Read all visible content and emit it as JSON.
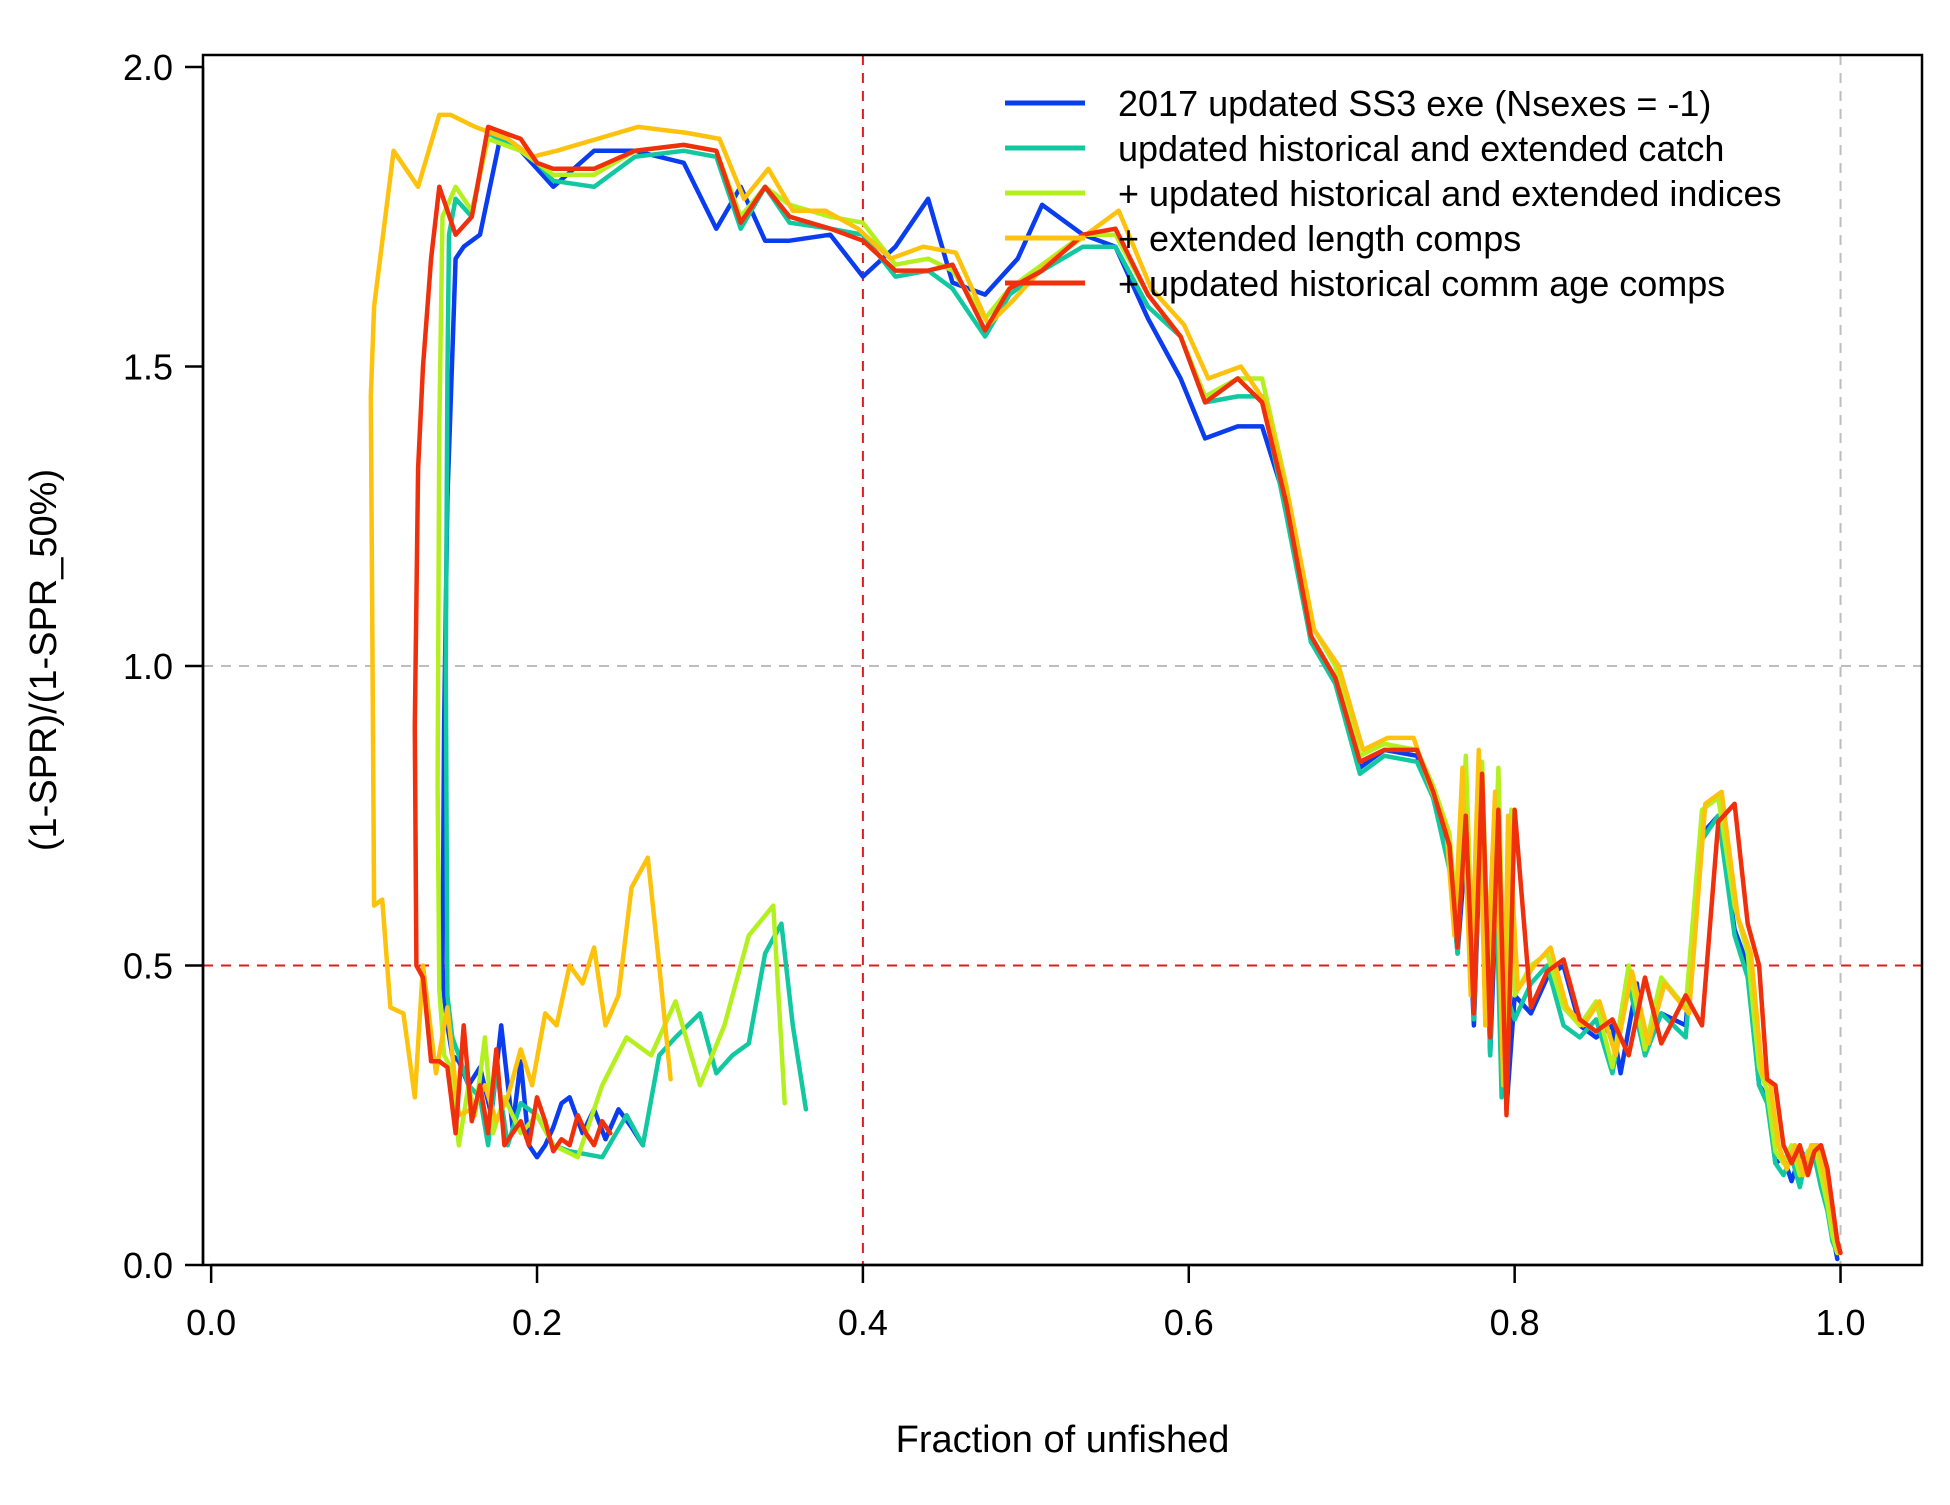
{
  "chart_data": {
    "type": "line",
    "title": "",
    "xlabel": "Fraction of unfished",
    "ylabel": "(1-SPR)/(1-SPR_50%)",
    "xlim": [
      -0.005,
      1.05
    ],
    "ylim": [
      0,
      2.02
    ],
    "xticks": [
      0.0,
      0.2,
      0.4,
      0.6,
      0.8,
      1.0
    ],
    "xtick_labels": [
      "0.0",
      "0.2",
      "0.4",
      "0.6",
      "0.8",
      "1.0"
    ],
    "yticks": [
      0.0,
      0.5,
      1.0,
      1.5,
      2.0
    ],
    "ytick_labels": [
      "0.0",
      "0.5",
      "1.0",
      "1.5",
      "2.0"
    ],
    "grid": false,
    "legend_position": "top-right",
    "reference_lines": [
      {
        "axis": "x",
        "value": 0.4,
        "color": "#e31a1c",
        "style": "dashed"
      },
      {
        "axis": "y",
        "value": 0.5,
        "color": "#e31a1c",
        "style": "dashed"
      },
      {
        "axis": "x",
        "value": 1.0,
        "color": "#bdbdbd",
        "style": "dashed"
      },
      {
        "axis": "y",
        "value": 1.0,
        "color": "#bdbdbd",
        "style": "dashed"
      }
    ],
    "series": [
      {
        "name": "2017 updated SS3 exe (Nsexes = -1)",
        "color": "#0a3cf0",
        "x": [
          0.998,
          0.996,
          0.993,
          0.99,
          0.985,
          0.98,
          0.976,
          0.97,
          0.965,
          0.96,
          0.955,
          0.95,
          0.943,
          0.935,
          0.925,
          0.915,
          0.905,
          0.89,
          0.88,
          0.875,
          0.865,
          0.86,
          0.85,
          0.84,
          0.83,
          0.82,
          0.81,
          0.8,
          0.795,
          0.79,
          0.785,
          0.78,
          0.775,
          0.77,
          0.765,
          0.76,
          0.75,
          0.74,
          0.72,
          0.705,
          0.69,
          0.675,
          0.66,
          0.645,
          0.63,
          0.61,
          0.595,
          0.575,
          0.555,
          0.535,
          0.51,
          0.495,
          0.475,
          0.455,
          0.44,
          0.42,
          0.4,
          0.38,
          0.355,
          0.34,
          0.325,
          0.31,
          0.29,
          0.26,
          0.235,
          0.21,
          0.2,
          0.19,
          0.178,
          0.165,
          0.155,
          0.15,
          0.145,
          0.143,
          0.142,
          0.143,
          0.145,
          0.148,
          0.152,
          0.158,
          0.165,
          0.172,
          0.178,
          0.185,
          0.19,
          0.195,
          0.2,
          0.205,
          0.21,
          0.215,
          0.22,
          0.228,
          0.235,
          0.242,
          0.25,
          0.258,
          0.265
        ],
        "y": [
          0.01,
          0.04,
          0.09,
          0.14,
          0.19,
          0.17,
          0.19,
          0.14,
          0.18,
          0.17,
          0.28,
          0.3,
          0.5,
          0.56,
          0.75,
          0.72,
          0.4,
          0.42,
          0.35,
          0.47,
          0.32,
          0.4,
          0.38,
          0.4,
          0.5,
          0.48,
          0.42,
          0.45,
          0.26,
          0.72,
          0.35,
          0.8,
          0.4,
          0.7,
          0.52,
          0.67,
          0.78,
          0.85,
          0.86,
          0.83,
          0.98,
          1.04,
          1.27,
          1.4,
          1.4,
          1.38,
          1.48,
          1.58,
          1.7,
          1.72,
          1.77,
          1.68,
          1.62,
          1.64,
          1.78,
          1.7,
          1.65,
          1.72,
          1.71,
          1.71,
          1.8,
          1.73,
          1.84,
          1.86,
          1.86,
          1.8,
          1.83,
          1.86,
          1.89,
          1.72,
          1.7,
          1.68,
          1.28,
          0.9,
          0.5,
          0.45,
          0.4,
          0.35,
          0.34,
          0.3,
          0.33,
          0.25,
          0.4,
          0.23,
          0.34,
          0.2,
          0.18,
          0.2,
          0.23,
          0.27,
          0.28,
          0.22,
          0.26,
          0.21,
          0.26,
          0.23,
          0.2
        ]
      },
      {
        "name": "updated historical and extended catch",
        "color": "#12c8a0",
        "x": [
          0.998,
          0.995,
          0.992,
          0.988,
          0.984,
          0.98,
          0.975,
          0.97,
          0.965,
          0.96,
          0.955,
          0.95,
          0.943,
          0.935,
          0.925,
          0.915,
          0.905,
          0.89,
          0.88,
          0.87,
          0.86,
          0.85,
          0.84,
          0.83,
          0.82,
          0.81,
          0.8,
          0.795,
          0.792,
          0.788,
          0.785,
          0.78,
          0.775,
          0.77,
          0.765,
          0.76,
          0.75,
          0.74,
          0.72,
          0.705,
          0.69,
          0.675,
          0.66,
          0.645,
          0.63,
          0.61,
          0.595,
          0.575,
          0.555,
          0.535,
          0.51,
          0.49,
          0.475,
          0.455,
          0.44,
          0.42,
          0.4,
          0.38,
          0.355,
          0.34,
          0.325,
          0.31,
          0.29,
          0.26,
          0.235,
          0.21,
          0.2,
          0.19,
          0.17,
          0.16,
          0.15,
          0.146,
          0.145,
          0.144,
          0.145,
          0.148,
          0.152,
          0.158,
          0.165,
          0.17,
          0.175,
          0.182,
          0.19,
          0.2,
          0.21,
          0.22,
          0.24,
          0.255,
          0.265,
          0.275,
          0.285,
          0.3,
          0.31,
          0.32,
          0.33,
          0.34,
          0.35,
          0.357,
          0.365
        ],
        "y": [
          0.02,
          0.04,
          0.09,
          0.13,
          0.18,
          0.19,
          0.13,
          0.18,
          0.15,
          0.17,
          0.27,
          0.3,
          0.48,
          0.55,
          0.75,
          0.71,
          0.38,
          0.42,
          0.35,
          0.47,
          0.32,
          0.41,
          0.38,
          0.4,
          0.5,
          0.47,
          0.41,
          0.45,
          0.28,
          0.7,
          0.35,
          0.82,
          0.41,
          0.8,
          0.52,
          0.66,
          0.78,
          0.84,
          0.85,
          0.82,
          0.97,
          1.04,
          1.25,
          1.45,
          1.45,
          1.44,
          1.55,
          1.6,
          1.7,
          1.7,
          1.66,
          1.62,
          1.55,
          1.63,
          1.66,
          1.65,
          1.72,
          1.73,
          1.74,
          1.8,
          1.73,
          1.85,
          1.86,
          1.85,
          1.8,
          1.81,
          1.84,
          1.86,
          1.89,
          1.75,
          1.78,
          1.72,
          1.48,
          1.0,
          0.45,
          0.38,
          0.35,
          0.3,
          0.28,
          0.2,
          0.33,
          0.2,
          0.27,
          0.25,
          0.2,
          0.19,
          0.18,
          0.25,
          0.2,
          0.35,
          0.38,
          0.42,
          0.32,
          0.35,
          0.37,
          0.52,
          0.57,
          0.4,
          0.26
        ]
      },
      {
        "name": "+ updated historical and extended indices",
        "color": "#b4f020",
        "x": [
          0.998,
          0.995,
          0.992,
          0.988,
          0.984,
          0.98,
          0.975,
          0.97,
          0.965,
          0.96,
          0.955,
          0.95,
          0.943,
          0.935,
          0.925,
          0.915,
          0.905,
          0.89,
          0.88,
          0.87,
          0.86,
          0.85,
          0.84,
          0.83,
          0.82,
          0.81,
          0.8,
          0.798,
          0.795,
          0.79,
          0.785,
          0.78,
          0.775,
          0.77,
          0.765,
          0.76,
          0.75,
          0.74,
          0.72,
          0.705,
          0.69,
          0.675,
          0.66,
          0.645,
          0.63,
          0.61,
          0.595,
          0.575,
          0.555,
          0.535,
          0.51,
          0.49,
          0.475,
          0.455,
          0.44,
          0.42,
          0.4,
          0.38,
          0.355,
          0.34,
          0.325,
          0.31,
          0.29,
          0.26,
          0.235,
          0.21,
          0.2,
          0.19,
          0.17,
          0.16,
          0.15,
          0.142,
          0.14,
          0.139,
          0.14,
          0.143,
          0.147,
          0.152,
          0.158,
          0.162,
          0.168,
          0.173,
          0.18,
          0.19,
          0.2,
          0.21,
          0.225,
          0.24,
          0.255,
          0.27,
          0.285,
          0.3,
          0.315,
          0.33,
          0.345,
          0.352
        ],
        "y": [
          0.02,
          0.05,
          0.1,
          0.15,
          0.2,
          0.19,
          0.15,
          0.2,
          0.17,
          0.19,
          0.29,
          0.33,
          0.52,
          0.6,
          0.78,
          0.76,
          0.43,
          0.48,
          0.36,
          0.5,
          0.33,
          0.44,
          0.4,
          0.43,
          0.52,
          0.5,
          0.45,
          0.76,
          0.29,
          0.83,
          0.4,
          0.84,
          0.45,
          0.85,
          0.56,
          0.72,
          0.8,
          0.86,
          0.87,
          0.85,
          1.0,
          1.07,
          1.3,
          1.48,
          1.48,
          1.45,
          1.55,
          1.62,
          1.72,
          1.72,
          1.67,
          1.63,
          1.58,
          1.66,
          1.68,
          1.67,
          1.74,
          1.75,
          1.77,
          1.8,
          1.75,
          1.86,
          1.87,
          1.86,
          1.82,
          1.82,
          1.84,
          1.86,
          1.88,
          1.76,
          1.8,
          1.75,
          1.4,
          0.8,
          0.46,
          0.35,
          0.33,
          0.2,
          0.3,
          0.25,
          0.38,
          0.22,
          0.28,
          0.22,
          0.25,
          0.2,
          0.18,
          0.3,
          0.38,
          0.35,
          0.44,
          0.3,
          0.4,
          0.55,
          0.6,
          0.27
        ]
      },
      {
        "name": "+ extended length comps",
        "color": "#fcc20c",
        "x": [
          0.999,
          0.997,
          0.994,
          0.99,
          0.986,
          0.982,
          0.977,
          0.972,
          0.967,
          0.962,
          0.957,
          0.952,
          0.945,
          0.937,
          0.927,
          0.917,
          0.907,
          0.892,
          0.882,
          0.872,
          0.862,
          0.852,
          0.842,
          0.832,
          0.822,
          0.812,
          0.802,
          0.796,
          0.793,
          0.788,
          0.782,
          0.778,
          0.773,
          0.768,
          0.763,
          0.758,
          0.748,
          0.738,
          0.722,
          0.707,
          0.692,
          0.677,
          0.662,
          0.647,
          0.632,
          0.612,
          0.597,
          0.577,
          0.557,
          0.537,
          0.512,
          0.492,
          0.477,
          0.457,
          0.437,
          0.417,
          0.397,
          0.377,
          0.357,
          0.342,
          0.327,
          0.312,
          0.292,
          0.262,
          0.237,
          0.212,
          0.197,
          0.182,
          0.162,
          0.147,
          0.14,
          0.127,
          0.112,
          0.1,
          0.098,
          0.1,
          0.105,
          0.11,
          0.118,
          0.125,
          0.13,
          0.138,
          0.145,
          0.152,
          0.16,
          0.168,
          0.175,
          0.182,
          0.19,
          0.197,
          0.205,
          0.212,
          0.22,
          0.228,
          0.235,
          0.242,
          0.25,
          0.258,
          0.268,
          0.275,
          0.282
        ],
        "y": [
          0.02,
          0.05,
          0.1,
          0.15,
          0.2,
          0.2,
          0.15,
          0.2,
          0.16,
          0.2,
          0.3,
          0.32,
          0.52,
          0.58,
          0.79,
          0.77,
          0.42,
          0.47,
          0.37,
          0.49,
          0.35,
          0.44,
          0.4,
          0.43,
          0.53,
          0.5,
          0.46,
          0.75,
          0.3,
          0.79,
          0.4,
          0.86,
          0.45,
          0.83,
          0.55,
          0.73,
          0.8,
          0.88,
          0.88,
          0.86,
          1.0,
          1.06,
          1.27,
          1.44,
          1.5,
          1.48,
          1.57,
          1.63,
          1.76,
          1.72,
          1.67,
          1.61,
          1.57,
          1.69,
          1.7,
          1.68,
          1.73,
          1.76,
          1.76,
          1.83,
          1.78,
          1.88,
          1.89,
          1.9,
          1.88,
          1.86,
          1.85,
          1.88,
          1.9,
          1.92,
          1.92,
          1.8,
          1.86,
          1.6,
          1.45,
          0.6,
          0.61,
          0.43,
          0.42,
          0.28,
          0.5,
          0.32,
          0.43,
          0.25,
          0.26,
          0.3,
          0.24,
          0.28,
          0.36,
          0.3,
          0.42,
          0.4,
          0.5,
          0.47,
          0.53,
          0.4,
          0.45,
          0.63,
          0.68,
          0.5,
          0.31
        ]
      },
      {
        "name": "+ updated historical comm age comps",
        "color": "#f0300c",
        "x": [
          1.0,
          0.998,
          0.995,
          0.992,
          0.988,
          0.984,
          0.98,
          0.975,
          0.97,
          0.965,
          0.96,
          0.955,
          0.95,
          0.943,
          0.935,
          0.925,
          0.915,
          0.905,
          0.89,
          0.88,
          0.87,
          0.86,
          0.85,
          0.84,
          0.83,
          0.82,
          0.81,
          0.8,
          0.795,
          0.79,
          0.785,
          0.78,
          0.775,
          0.77,
          0.765,
          0.76,
          0.75,
          0.74,
          0.72,
          0.705,
          0.69,
          0.675,
          0.66,
          0.645,
          0.63,
          0.61,
          0.595,
          0.575,
          0.555,
          0.535,
          0.51,
          0.49,
          0.475,
          0.455,
          0.44,
          0.42,
          0.4,
          0.38,
          0.355,
          0.34,
          0.325,
          0.31,
          0.29,
          0.26,
          0.235,
          0.21,
          0.2,
          0.19,
          0.17,
          0.16,
          0.15,
          0.14,
          0.135,
          0.13,
          0.127,
          0.125,
          0.126,
          0.128,
          0.13,
          0.135,
          0.14,
          0.145,
          0.15,
          0.155,
          0.16,
          0.165,
          0.17,
          0.175,
          0.18,
          0.185,
          0.19,
          0.195,
          0.2,
          0.205,
          0.21,
          0.215,
          0.22,
          0.225,
          0.23,
          0.235,
          0.24,
          0.245
        ],
        "y": [
          0.02,
          0.04,
          0.1,
          0.16,
          0.2,
          0.19,
          0.15,
          0.2,
          0.17,
          0.2,
          0.3,
          0.31,
          0.5,
          0.57,
          0.77,
          0.74,
          0.4,
          0.45,
          0.37,
          0.48,
          0.35,
          0.41,
          0.39,
          0.41,
          0.51,
          0.49,
          0.43,
          0.76,
          0.25,
          0.76,
          0.38,
          0.82,
          0.42,
          0.75,
          0.53,
          0.7,
          0.79,
          0.86,
          0.86,
          0.84,
          0.98,
          1.05,
          1.27,
          1.44,
          1.48,
          1.44,
          1.55,
          1.62,
          1.73,
          1.72,
          1.66,
          1.63,
          1.56,
          1.67,
          1.66,
          1.66,
          1.71,
          1.73,
          1.75,
          1.8,
          1.74,
          1.86,
          1.87,
          1.86,
          1.83,
          1.83,
          1.84,
          1.88,
          1.9,
          1.75,
          1.72,
          1.8,
          1.68,
          1.5,
          1.33,
          0.9,
          0.5,
          0.49,
          0.48,
          0.34,
          0.34,
          0.33,
          0.22,
          0.4,
          0.24,
          0.3,
          0.22,
          0.36,
          0.2,
          0.22,
          0.24,
          0.2,
          0.28,
          0.24,
          0.19,
          0.21,
          0.2,
          0.25,
          0.22,
          0.2,
          0.24,
          0.22
        ]
      }
    ]
  }
}
